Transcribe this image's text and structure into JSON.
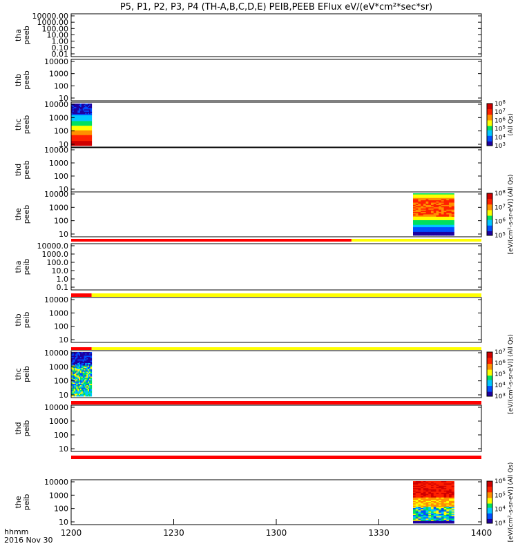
{
  "chart_data": {
    "type": "heatmap",
    "title": "P5, P1, P2, P3, P4 (TH-A,B,C,D,E) PEIB,PEEB EFlux eV/(eV*cm²*sec*sr)",
    "x_ticks": [
      "1200",
      "1230",
      "1300",
      "1330",
      "1400"
    ],
    "x_range_minutes": [
      0,
      120
    ],
    "footer": {
      "line1": "hhmm",
      "line2": "2016 Nov 30"
    },
    "colormap": [
      "#1e00a0",
      "#0050ff",
      "#00c8ff",
      "#00e060",
      "#ffff00",
      "#ff9000",
      "#ff2000",
      "#d00000"
    ],
    "flag_colors": {
      "red": "#ff0000",
      "yellow": "#ffff00"
    },
    "panels": [
      {
        "id": "tha-peeb",
        "label": "tha\npeeb",
        "ylabel": "tha peeb",
        "yticks": [
          "10000.00",
          "1000.00",
          "100.00",
          "10.00",
          "1.00",
          "0.10",
          "0.01"
        ],
        "log_range": [
          -2,
          4
        ],
        "spectra": [],
        "colorbar": null
      },
      {
        "id": "thb-peeb",
        "label": "thb\npeeb",
        "ylabel": "thb peeb",
        "yticks": [
          "10000",
          "1000",
          "100",
          "10"
        ],
        "log_range": [
          1,
          4
        ],
        "spectra": [],
        "colorbar": null
      },
      {
        "id": "thc-peeb",
        "label": "thc\npeeb",
        "ylabel": "thc peeb",
        "yticks": [
          "10000",
          "1000",
          "100",
          "10"
        ],
        "log_range": [
          1,
          4
        ],
        "spectra": [
          {
            "t_start": 0,
            "t_end": 6,
            "profile": "descending",
            "noisy_top": true
          }
        ],
        "colorbar": {
          "ticks": [
            "10^8",
            "10^7",
            "10^6",
            "10^5",
            "10^4",
            "10^3"
          ],
          "label": "(All Qs)"
        }
      },
      {
        "id": "thd-peeb",
        "label": "thd\npeeb",
        "ylabel": "thd peeb",
        "yticks": [
          "10000",
          "1000",
          "100",
          "10"
        ],
        "log_range": [
          1,
          4
        ],
        "spectra": [],
        "colorbar": null
      },
      {
        "id": "the-peeb",
        "label": "the\npeeb",
        "ylabel": "the peeb",
        "yticks": [
          "10000",
          "1000",
          "100",
          "10"
        ],
        "log_range": [
          1,
          4
        ],
        "spectra": [
          {
            "t_start": 100,
            "t_end": 112,
            "profile": "hot",
            "noisy_top": false
          }
        ],
        "colorbar": {
          "ticks": [
            "10^8",
            "10^7",
            "10^6",
            "10^5"
          ],
          "label": "[eV/(cm²-s-sr-eV)] (All Qs)"
        },
        "flag_below": [
          {
            "t_start": 0,
            "t_end": 82,
            "color": "red"
          },
          {
            "t_start": 82,
            "t_end": 120,
            "color": "yellow"
          }
        ]
      },
      {
        "id": "tha-peib",
        "label": "tha\npeib",
        "ylabel": "tha peib",
        "yticks": [
          "10000.0",
          "1000.0",
          "100.0",
          "10.0",
          "1.0",
          "0.1"
        ],
        "log_range": [
          -1,
          4
        ],
        "spectra": [],
        "colorbar": null,
        "flag_below": [
          {
            "t_start": 0,
            "t_end": 6,
            "color": "red"
          },
          {
            "t_start": 6,
            "t_end": 120,
            "color": "yellow"
          }
        ]
      },
      {
        "id": "thb-peib",
        "label": "thb\npeib",
        "ylabel": "thb peib",
        "yticks": [
          "10000",
          "1000",
          "100",
          "10"
        ],
        "log_range": [
          1,
          4
        ],
        "spectra": [],
        "colorbar": null,
        "flag_below": [
          {
            "t_start": 0,
            "t_end": 6,
            "color": "red"
          },
          {
            "t_start": 6,
            "t_end": 120,
            "color": "yellow"
          }
        ]
      },
      {
        "id": "thc-peib",
        "label": "thc\npeib",
        "ylabel": "thc peib",
        "yticks": [
          "10000",
          "1000",
          "100",
          "10"
        ],
        "log_range": [
          1,
          4
        ],
        "spectra": [
          {
            "t_start": 0,
            "t_end": 6,
            "profile": "ion_noisy",
            "noisy_top": true
          }
        ],
        "colorbar": {
          "ticks": [
            "10^7",
            "10^6",
            "10^5",
            "10^4",
            "10^3"
          ],
          "label": "[eV/(cm²-s-sr-eV)] (All Qs)"
        },
        "flag_below": [
          {
            "t_start": 0,
            "t_end": 120,
            "color": "red"
          }
        ]
      },
      {
        "id": "thd-peib",
        "label": "thd\npeib",
        "ylabel": "thd peib",
        "yticks": [
          "10000",
          "1000",
          "100",
          "10"
        ],
        "log_range": [
          1,
          4
        ],
        "spectra": [],
        "colorbar": null,
        "flag_below": [
          {
            "t_start": 0,
            "t_end": 120,
            "color": "red"
          }
        ]
      },
      {
        "id": "the-peib",
        "label": "the\npeib",
        "ylabel": "the peib",
        "yticks": [
          "10000",
          "1000",
          "100",
          "10"
        ],
        "log_range": [
          1,
          4
        ],
        "spectra": [
          {
            "t_start": 100,
            "t_end": 112,
            "profile": "ion_hot",
            "noisy_top": false
          }
        ],
        "colorbar": {
          "ticks": [
            "10^6",
            "10^5",
            "10^4",
            "10^3"
          ],
          "label": "[eV/(cm²-s-sr-eV)] (All Qs)"
        }
      }
    ]
  }
}
